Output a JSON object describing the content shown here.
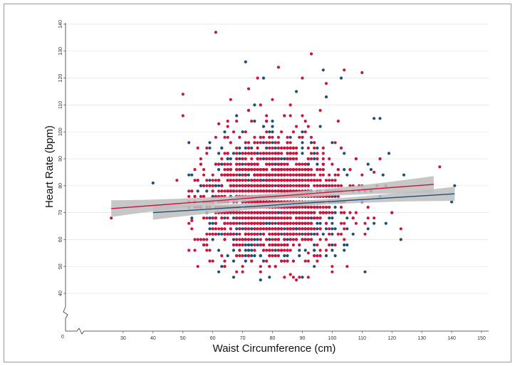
{
  "chart_data": {
    "type": "scatter",
    "title": "",
    "xlabel": "Waist Circumference (cm)",
    "ylabel": "Heart Rate (bpm)",
    "xlim": [
      20,
      150
    ],
    "ylim": [
      40,
      140
    ],
    "x_axis_zero_label": "0",
    "x_ticks": [
      30,
      40,
      50,
      60,
      70,
      80,
      90,
      100,
      110,
      120,
      130,
      140,
      150
    ],
    "y_ticks": [
      40,
      50,
      60,
      70,
      80,
      90,
      100,
      110,
      120,
      130,
      140
    ],
    "grid": "horizontal",
    "legend": "none",
    "colors": {
      "series_red": "#c8163f",
      "series_blue": "#1f4e79",
      "ci_band": "#bdbdbd"
    },
    "series": [
      {
        "color_key": "series_red",
        "trend": {
          "x": [
            26,
            134
          ],
          "y": [
            71.5,
            80.5
          ],
          "ci": 1.4
        },
        "points": [
          [
            26,
            68
          ],
          [
            50,
            114
          ],
          [
            50,
            106
          ],
          [
            61,
            137
          ],
          [
            93,
            129
          ],
          [
            104,
            123
          ],
          [
            82,
            124
          ],
          [
            56,
            88
          ],
          [
            57,
            84
          ],
          [
            54,
            72
          ],
          [
            53,
            67
          ],
          [
            136,
            87
          ],
          [
            123,
            64
          ],
          [
            110,
            122
          ],
          [
            98,
            118
          ],
          [
            90,
            120
          ],
          [
            75,
            120
          ],
          [
            72,
            116
          ],
          [
            66,
            112
          ],
          [
            62,
            103
          ],
          [
            86,
            47
          ],
          [
            88,
            45
          ],
          [
            100,
            48
          ],
          [
            95,
            52
          ],
          [
            60,
            80
          ],
          [
            65,
            98
          ],
          [
            118,
            80
          ],
          [
            120,
            70
          ],
          [
            48,
            82
          ],
          [
            52,
            78
          ],
          [
            70,
            60
          ],
          [
            74,
            56
          ],
          [
            78,
            56
          ],
          [
            84,
            52
          ],
          [
            92,
            55
          ],
          [
            104,
            60
          ],
          [
            108,
            66
          ],
          [
            112,
            72
          ],
          [
            114,
            85
          ],
          [
            116,
            90
          ],
          [
            68,
            104
          ],
          [
            72,
            108
          ],
          [
            80,
            112
          ],
          [
            86,
            110
          ],
          [
            96,
            108
          ],
          [
            102,
            104
          ],
          [
            58,
            72
          ],
          [
            64,
            66
          ]
        ]
      },
      {
        "color_key": "series_blue",
        "trend": {
          "x": [
            40,
            141
          ],
          "y": [
            70,
            77
          ],
          "ci": 1.2
        },
        "points": [
          [
            40,
            81
          ],
          [
            71,
            126
          ],
          [
            77,
            120
          ],
          [
            88,
            115
          ],
          [
            97,
            123
          ],
          [
            98,
            113
          ],
          [
            103,
            120
          ],
          [
            114,
            105
          ],
          [
            116,
            105
          ],
          [
            111,
            48
          ],
          [
            123,
            60
          ],
          [
            141,
            80
          ],
          [
            140,
            74
          ],
          [
            119,
            92
          ],
          [
            124,
            84
          ],
          [
            112,
            64
          ],
          [
            105,
            58
          ],
          [
            79,
            46
          ],
          [
            76,
            45
          ],
          [
            73,
            52
          ],
          [
            67,
            52
          ],
          [
            59,
            66
          ],
          [
            56,
            80
          ],
          [
            62,
            88
          ],
          [
            70,
            100
          ],
          [
            74,
            110
          ],
          [
            84,
            106
          ],
          [
            90,
            100
          ],
          [
            100,
            96
          ],
          [
            108,
            90
          ],
          [
            116,
            76
          ],
          [
            120,
            70
          ],
          [
            60,
            60
          ],
          [
            66,
            62
          ],
          [
            94,
            50
          ],
          [
            100,
            56
          ],
          [
            82,
            92
          ],
          [
            88,
            82
          ],
          [
            96,
            70
          ],
          [
            104,
            74
          ],
          [
            78,
            66
          ],
          [
            72,
            78
          ],
          [
            64,
            74
          ],
          [
            112,
            88
          ],
          [
            118,
            66
          ]
        ]
      }
    ]
  }
}
